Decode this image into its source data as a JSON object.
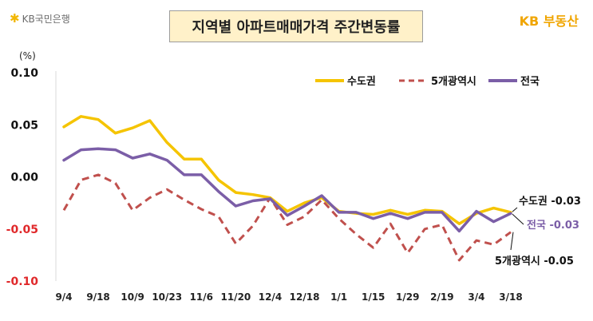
{
  "header": {
    "left_logo": "KB국민은행",
    "title": "지역별 아파트매매가격 주간변동률",
    "right_logo_kb": "KB",
    "right_logo_text": "부동산"
  },
  "colors": {
    "capital": "#f5c400",
    "metro": "#c0504d",
    "national": "#7b5ea7",
    "negative_tick": "#e0282a",
    "positive_tick": "#111111"
  },
  "chart_data": {
    "type": "line",
    "unit_label": "(%)",
    "ylim": [
      -0.1,
      0.1
    ],
    "yticks": [
      "0.10",
      "0.05",
      "0.00",
      "-0.05",
      "-0.10"
    ],
    "ytick_values": [
      0.1,
      0.05,
      0.0,
      -0.05,
      -0.1
    ],
    "xtick_labels": [
      "9/4",
      "9/18",
      "10/9",
      "10/23",
      "11/6",
      "11/20",
      "12/4",
      "12/18",
      "1/1",
      "1/15",
      "1/29",
      "2/19",
      "3/4",
      "3/18"
    ],
    "xtick_index": [
      0,
      2,
      4,
      6,
      8,
      10,
      12,
      14,
      16,
      18,
      20,
      22,
      24,
      26
    ],
    "legend_position": "top-right",
    "series": [
      {
        "name": "수도권",
        "values": [
          0.048,
          0.058,
          0.055,
          0.042,
          0.047,
          0.054,
          0.033,
          0.017,
          0.017,
          -0.003,
          -0.015,
          -0.017,
          -0.02,
          -0.033,
          -0.025,
          -0.02,
          -0.033,
          -0.035,
          -0.036,
          -0.032,
          -0.036,
          -0.032,
          -0.033,
          -0.045,
          -0.035,
          -0.03,
          -0.034
        ]
      },
      {
        "name": "5개광역시",
        "values": [
          -0.032,
          -0.003,
          0.002,
          -0.006,
          -0.032,
          -0.02,
          -0.012,
          -0.022,
          -0.031,
          -0.038,
          -0.064,
          -0.047,
          -0.02,
          -0.046,
          -0.038,
          -0.022,
          -0.04,
          -0.055,
          -0.068,
          -0.045,
          -0.073,
          -0.05,
          -0.046,
          -0.08,
          -0.061,
          -0.065,
          -0.053
        ]
      },
      {
        "name": "전국",
        "values": [
          0.016,
          0.026,
          0.027,
          0.026,
          0.018,
          0.022,
          0.016,
          0.002,
          0.002,
          -0.014,
          -0.028,
          -0.023,
          -0.021,
          -0.037,
          -0.028,
          -0.018,
          -0.034,
          -0.034,
          -0.04,
          -0.035,
          -0.04,
          -0.034,
          -0.034,
          -0.052,
          -0.033,
          -0.043,
          -0.035
        ]
      }
    ],
    "end_labels": [
      {
        "name": "수도권",
        "value": "-0.03"
      },
      {
        "name": "전국",
        "value": "-0.03"
      },
      {
        "name": "5개광역시",
        "value": "-0.05"
      }
    ]
  }
}
